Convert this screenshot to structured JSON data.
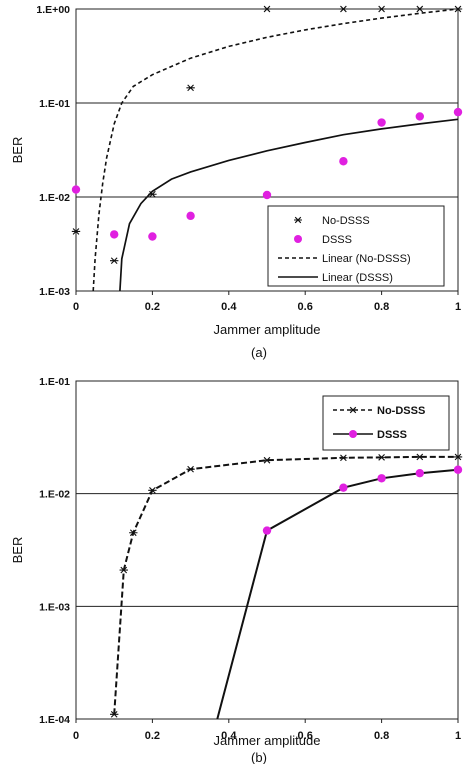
{
  "chart_data": [
    {
      "type": "scatter",
      "panel_caption": "(a)",
      "xlabel": "Jammer amplitude",
      "ylabel": "BER",
      "scale_y": "log",
      "xlim": [
        0,
        1
      ],
      "ylim": [
        0.001,
        1
      ],
      "x_ticks": [
        "0",
        "0.2",
        "0.4",
        "0.6",
        "0.8",
        "1"
      ],
      "y_ticks": [
        "1.E-03",
        "1.E-02",
        "1.E-01",
        "1.E+00"
      ],
      "grid": "horizontal",
      "legend_position": "lower-right",
      "legend": [
        "No-DSSS",
        "DSSS",
        "Linear (No-DSSS)",
        "Linear (DSSS)"
      ],
      "series": [
        {
          "name": "No-DSSS",
          "style": "asterisk",
          "color": "#111111",
          "points": [
            [
              0,
              0.0043
            ],
            [
              0.1,
              0.0021
            ],
            [
              0.2,
              0.0107
            ],
            [
              0.3,
              0.145
            ],
            [
              0.5,
              1.0
            ],
            [
              0.7,
              1.0
            ],
            [
              0.8,
              1.0
            ],
            [
              0.9,
              1.0
            ],
            [
              1.0,
              1.0
            ]
          ]
        },
        {
          "name": "DSSS",
          "style": "dot",
          "color": "#e020e0",
          "points": [
            [
              0,
              0.012
            ],
            [
              0.1,
              0.004
            ],
            [
              0.2,
              0.0038
            ],
            [
              0.3,
              0.0063
            ],
            [
              0.5,
              0.0105
            ],
            [
              0.7,
              0.024
            ],
            [
              0.8,
              0.062
            ],
            [
              0.9,
              0.072
            ],
            [
              1.0,
              0.08
            ]
          ]
        },
        {
          "name": "Linear (No-DSSS)",
          "style": "dashed",
          "color": "#111111",
          "points": [
            [
              0.045,
              0.001
            ],
            [
              0.05,
              0.0022
            ],
            [
              0.06,
              0.0065
            ],
            [
              0.07,
              0.014
            ],
            [
              0.08,
              0.026
            ],
            [
              0.1,
              0.06
            ],
            [
              0.12,
              0.1
            ],
            [
              0.15,
              0.15
            ],
            [
              0.2,
              0.2
            ],
            [
              0.3,
              0.3
            ],
            [
              0.4,
              0.4
            ],
            [
              0.5,
              0.5
            ],
            [
              0.6,
              0.6
            ],
            [
              0.7,
              0.7
            ],
            [
              0.8,
              0.8
            ],
            [
              0.9,
              0.9
            ],
            [
              1.0,
              1.0
            ]
          ]
        },
        {
          "name": "Linear (DSSS)",
          "style": "solid",
          "color": "#111111",
          "points": [
            [
              0.115,
              0.001
            ],
            [
              0.12,
              0.0022
            ],
            [
              0.14,
              0.0052
            ],
            [
              0.17,
              0.0085
            ],
            [
              0.2,
              0.0115
            ],
            [
              0.25,
              0.0155
            ],
            [
              0.3,
              0.0185
            ],
            [
              0.4,
              0.0245
            ],
            [
              0.5,
              0.031
            ],
            [
              0.6,
              0.038
            ],
            [
              0.7,
              0.046
            ],
            [
              0.8,
              0.053
            ],
            [
              0.9,
              0.06
            ],
            [
              1.0,
              0.067
            ]
          ]
        }
      ]
    },
    {
      "type": "line",
      "panel_caption": "(b)",
      "xlabel": "Jammer amplitude",
      "ylabel": "BER",
      "scale_y": "log",
      "xlim": [
        0,
        1
      ],
      "ylim": [
        0.0001,
        0.1
      ],
      "x_ticks": [
        "0",
        "0.2",
        "0.4",
        "0.6",
        "0.8",
        "1"
      ],
      "y_ticks": [
        "1.E-04",
        "1.E-03",
        "1.E-02",
        "1.E-01"
      ],
      "grid": "horizontal",
      "legend_position": "top-right",
      "legend": [
        "No-DSSS",
        "DSSS"
      ],
      "series": [
        {
          "name": "No-DSSS",
          "style": "dashed-asterisk",
          "color": "#111111",
          "points": [
            [
              0.1,
              0.00011
            ],
            [
              0.125,
              0.0021
            ],
            [
              0.15,
              0.0045
            ],
            [
              0.2,
              0.0107
            ],
            [
              0.3,
              0.0165
            ],
            [
              0.5,
              0.0198
            ],
            [
              0.7,
              0.0208
            ],
            [
              0.8,
              0.021
            ],
            [
              0.9,
              0.0212
            ],
            [
              1.0,
              0.0212
            ]
          ]
        },
        {
          "name": "DSSS",
          "style": "solid-dot",
          "color": "#e020e0",
          "points": [
            [
              0.37,
              0.0001
            ],
            [
              0.5,
              0.0047
            ],
            [
              0.7,
              0.0113
            ],
            [
              0.8,
              0.0137
            ],
            [
              0.9,
              0.0152
            ],
            [
              1.0,
              0.0163
            ]
          ]
        }
      ]
    }
  ]
}
